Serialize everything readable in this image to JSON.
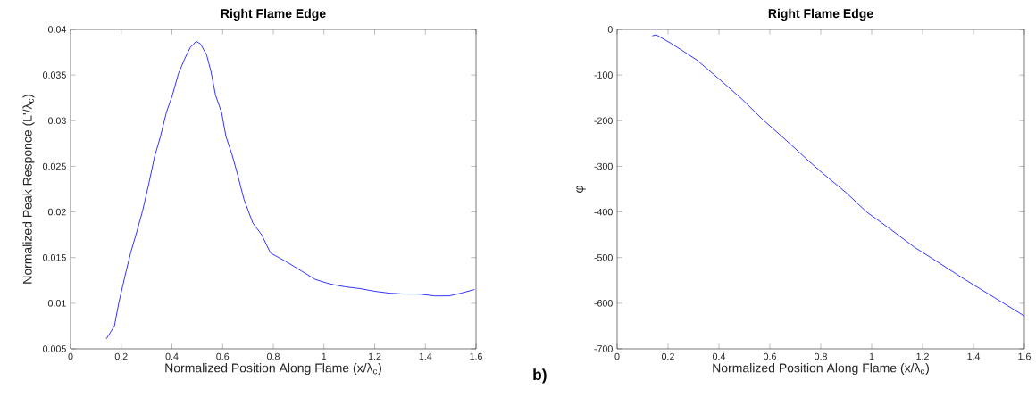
{
  "chart_data": [
    {
      "type": "line",
      "title": "Right Flame Edge",
      "xlabel": "Normalized Position Along Flame (x/λ$_{c}$)",
      "ylabel": "Normalized Peak Responce (L'/λ$_{c}$)",
      "series": [
        {
          "color": "#0000ff",
          "x": [
            0.141,
            0.173,
            0.19,
            0.214,
            0.237,
            0.261,
            0.284,
            0.308,
            0.331,
            0.355,
            0.378,
            0.402,
            0.425,
            0.449,
            0.472,
            0.496,
            0.513,
            0.537,
            0.554,
            0.572,
            0.596,
            0.613,
            0.637,
            0.66,
            0.684,
            0.719,
            0.754,
            0.789,
            0.848,
            0.907,
            0.966,
            1.024,
            1.083,
            1.142,
            1.201,
            1.259,
            1.318,
            1.377,
            1.436,
            1.494,
            1.541,
            1.594
          ],
          "values": [
            0.0061,
            0.0075,
            0.01,
            0.0129,
            0.0155,
            0.0178,
            0.0201,
            0.023,
            0.026,
            0.0283,
            0.0309,
            0.0328,
            0.0351,
            0.0367,
            0.038,
            0.0387,
            0.0384,
            0.0372,
            0.0354,
            0.0328,
            0.0309,
            0.0283,
            0.0263,
            0.024,
            0.0214,
            0.0188,
            0.0175,
            0.0155,
            0.0146,
            0.0136,
            0.0126,
            0.0121,
            0.0118,
            0.0116,
            0.0113,
            0.0111,
            0.011,
            0.011,
            0.0108,
            0.0108,
            0.0111,
            0.0115
          ]
        }
      ],
      "xlim": [
        0,
        1.6
      ],
      "xticks": [
        0,
        0.2,
        0.4,
        0.6,
        0.8,
        1,
        1.2,
        1.4,
        1.6
      ],
      "ylim": [
        0.005,
        0.04
      ],
      "yticks": [
        0.005,
        0.01,
        0.015,
        0.02,
        0.025,
        0.03,
        0.035,
        0.04
      ],
      "grid": false
    },
    {
      "type": "line",
      "title": "Right Flame Edge",
      "xlabel": "Normalized Position Along Flame (x/λ$_{c}$)",
      "ylabel": "φ",
      "annotations": [
        "**b)**"
      ],
      "series": [
        {
          "color": "#0000ff",
          "x": [
            0.138,
            0.154,
            0.213,
            0.255,
            0.313,
            0.395,
            0.489,
            0.571,
            0.664,
            0.758,
            0.805,
            0.898,
            0.98,
            1.074,
            1.167,
            1.249,
            1.366,
            1.483,
            1.6
          ],
          "values": [
            -14,
            -12,
            -31,
            -46,
            -67,
            -106,
            -152,
            -197,
            -243,
            -291,
            -314,
            -357,
            -400,
            -438,
            -477,
            -506,
            -548,
            -588,
            -628
          ]
        }
      ],
      "xlim": [
        0,
        1.6
      ],
      "xticks": [
        0,
        0.2,
        0.4,
        0.6,
        0.8,
        1,
        1.2,
        1.4,
        1.6
      ],
      "ylim": [
        -700,
        0
      ],
      "yticks": [
        -700,
        -600,
        -500,
        -400,
        -300,
        -200,
        -100,
        0
      ],
      "grid": false
    }
  ]
}
